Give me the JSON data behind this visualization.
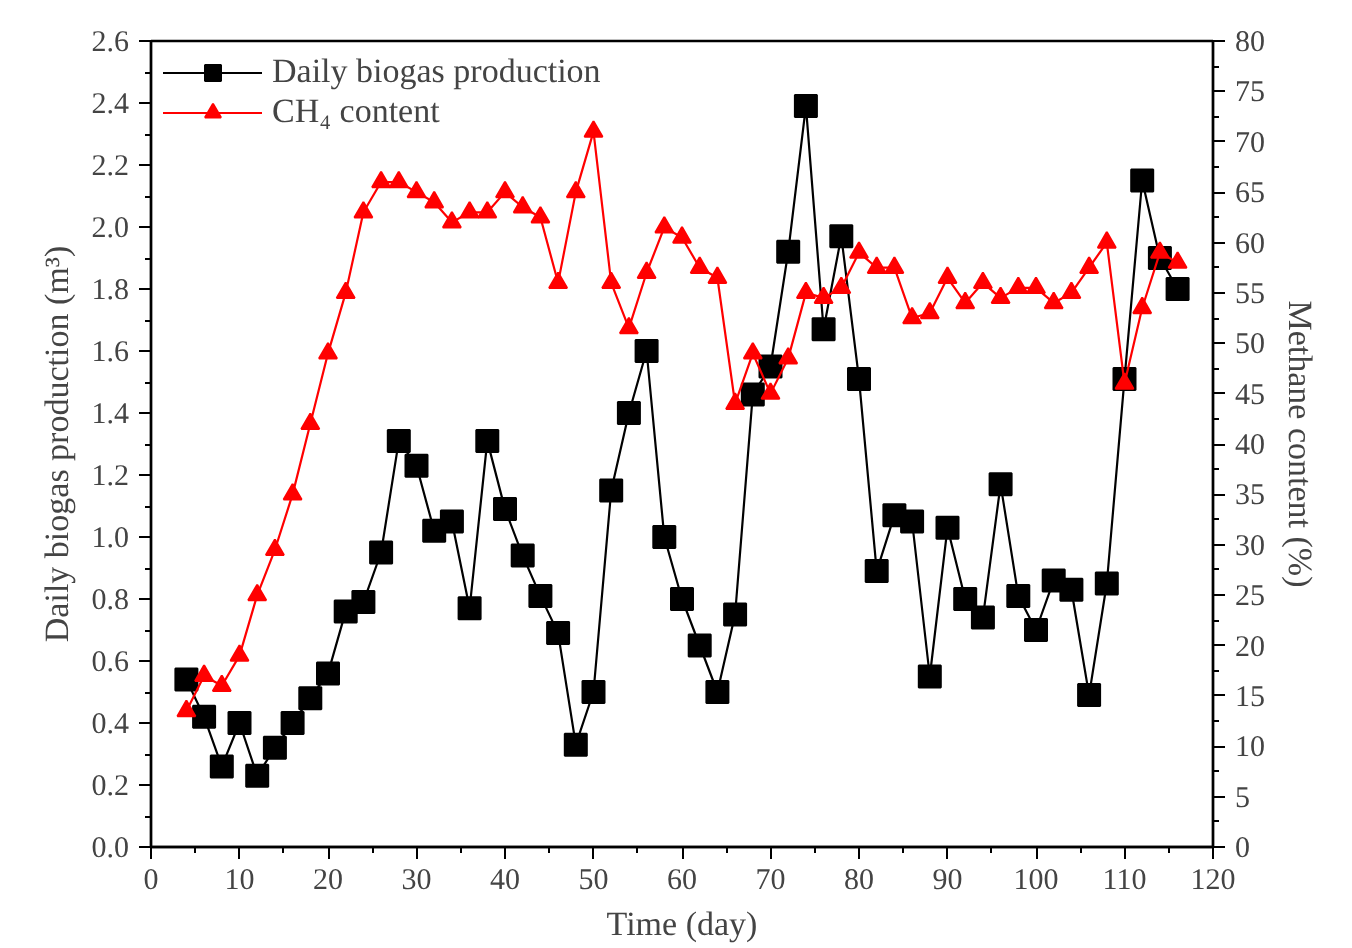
{
  "chart_data": {
    "type": "line",
    "xlabel": "Time (day)",
    "ylabel": "Daily biogas production (m³)",
    "y2label": "Methane content (%)",
    "x": [
      4,
      6,
      8,
      10,
      12,
      14,
      16,
      18,
      20,
      22,
      24,
      26,
      28,
      30,
      32,
      34,
      36,
      38,
      40,
      42,
      44,
      46,
      48,
      50,
      52,
      54,
      56,
      58,
      60,
      62,
      64,
      66,
      68,
      70,
      72,
      74,
      76,
      78,
      80,
      82,
      84,
      86,
      88,
      90,
      92,
      94,
      96,
      98,
      100,
      102,
      104,
      106,
      108,
      110,
      112,
      114,
      116
    ],
    "series": [
      {
        "name": "Daily biogas production",
        "color": "#000000",
        "marker": "square",
        "values": [
          0.54,
          0.42,
          0.26,
          0.4,
          0.23,
          0.32,
          0.4,
          0.48,
          0.56,
          0.76,
          0.79,
          0.95,
          1.31,
          1.23,
          1.02,
          1.05,
          0.77,
          1.31,
          1.09,
          0.94,
          0.81,
          0.69,
          0.33,
          0.5,
          1.15,
          1.4,
          1.6,
          1.0,
          0.8,
          0.65,
          0.5,
          0.75,
          1.46,
          1.55,
          1.92,
          2.39,
          1.67,
          1.97,
          1.51,
          0.89,
          1.07,
          1.05,
          0.55,
          1.03,
          0.8,
          0.74,
          1.17,
          0.81,
          0.7,
          0.86,
          0.83,
          0.49,
          0.85,
          1.51,
          2.15,
          1.9,
          1.8
        ]
      },
      {
        "name": "CH₄ content",
        "color": "#ff0000",
        "marker": "triangle",
        "axis": "y2",
        "values": [
          13.5,
          17,
          16,
          19,
          25,
          29.5,
          35,
          42,
          49,
          55,
          63,
          66,
          66,
          65,
          64,
          62,
          63,
          63,
          65,
          63.5,
          62.5,
          56,
          65,
          71,
          56,
          51.5,
          57,
          61.5,
          60.5,
          57.5,
          56.5,
          44,
          49,
          45,
          48.5,
          55,
          54.5,
          55.5,
          59,
          57.5,
          57.5,
          52.5,
          53,
          56.5,
          54,
          56,
          54.5,
          55.5,
          55.5,
          54,
          55,
          57.5,
          60,
          46,
          53.5,
          59,
          58
        ]
      }
    ],
    "xlim": [
      0,
      120
    ],
    "xticks": [
      0,
      10,
      20,
      30,
      40,
      50,
      60,
      70,
      80,
      90,
      100,
      110,
      120
    ],
    "ylim": [
      0,
      2.6
    ],
    "yticks": [
      {
        "value": 0,
        "label": "0.0"
      },
      {
        "value": 0.2,
        "label": "0.2"
      },
      {
        "value": 0.4,
        "label": "0.4"
      },
      {
        "value": 0.6,
        "label": "0.6"
      },
      {
        "value": 0.8,
        "label": "0.8"
      },
      {
        "value": 1.0,
        "label": "1.0"
      },
      {
        "value": 1.2,
        "label": "1.2"
      },
      {
        "value": 1.4,
        "label": "1.4"
      },
      {
        "value": 1.6,
        "label": "1.6"
      },
      {
        "value": 1.8,
        "label": "1.8"
      },
      {
        "value": 2.0,
        "label": "2.0"
      },
      {
        "value": 2.2,
        "label": "2.2"
      },
      {
        "value": 2.4,
        "label": "2.4"
      },
      {
        "value": 2.6,
        "label": "2.6"
      }
    ],
    "y2lim": [
      0,
      80
    ],
    "y2ticks": [
      0,
      5,
      10,
      15,
      20,
      25,
      30,
      35,
      40,
      45,
      50,
      55,
      60,
      65,
      70,
      75,
      80
    ],
    "legend": "top left",
    "grid": false
  }
}
